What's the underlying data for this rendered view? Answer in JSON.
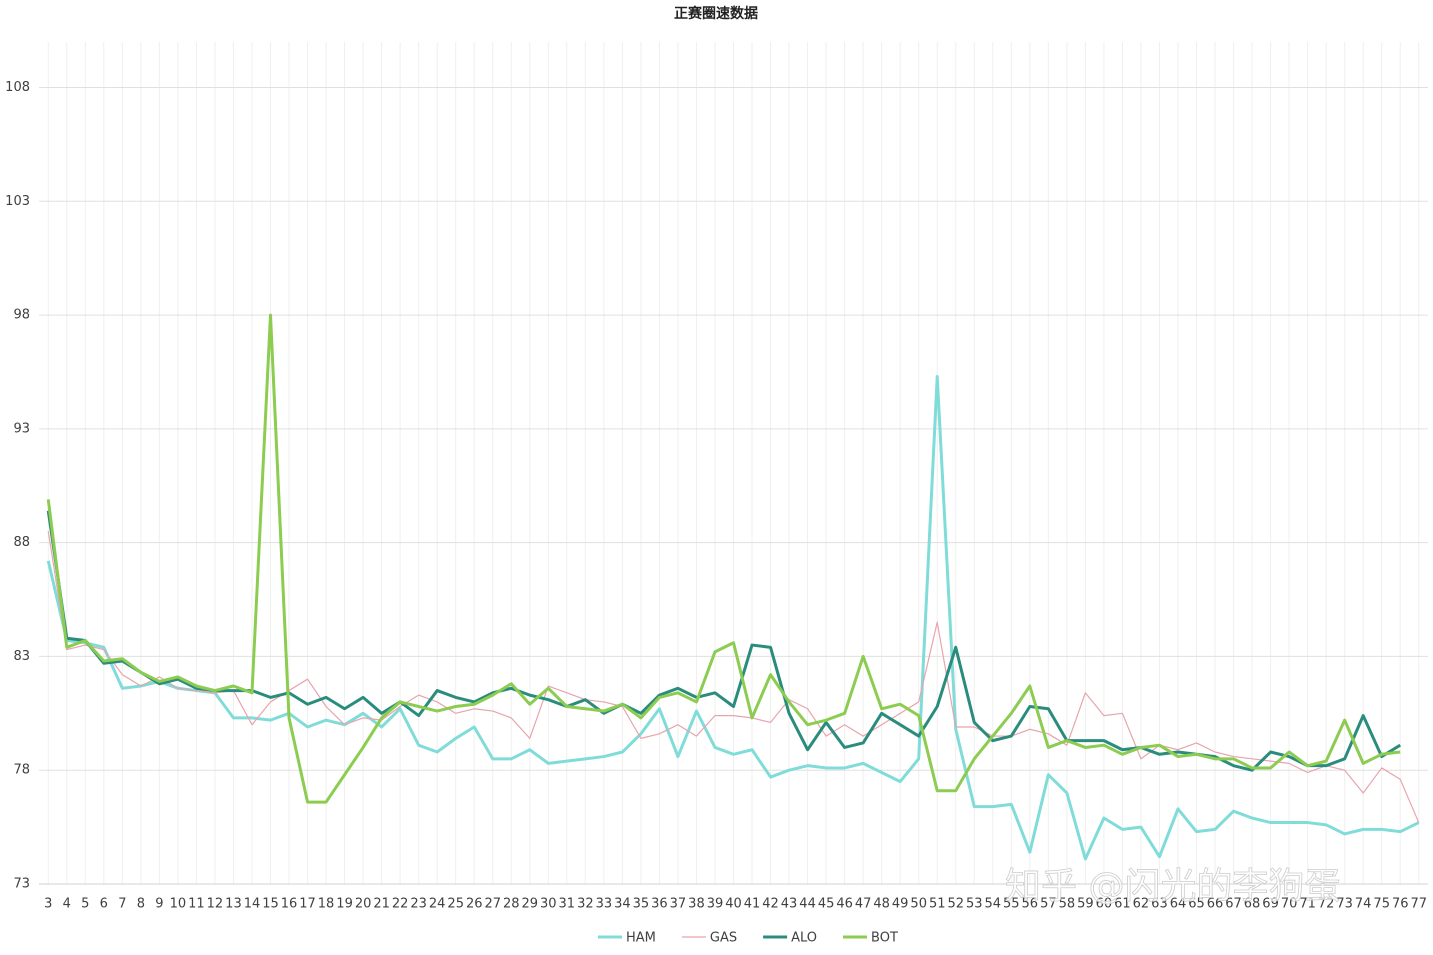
{
  "chart_data": {
    "type": "line",
    "title": "正赛圈速数据",
    "categories": [
      3,
      4,
      5,
      6,
      7,
      8,
      9,
      10,
      11,
      12,
      13,
      14,
      15,
      16,
      17,
      18,
      19,
      20,
      21,
      22,
      23,
      24,
      25,
      26,
      27,
      28,
      29,
      30,
      31,
      32,
      33,
      34,
      35,
      36,
      37,
      38,
      39,
      40,
      41,
      42,
      43,
      44,
      45,
      46,
      47,
      48,
      49,
      50,
      51,
      52,
      53,
      54,
      55,
      56,
      57,
      58,
      59,
      60,
      61,
      62,
      63,
      64,
      65,
      66,
      67,
      68,
      69,
      70,
      71,
      72,
      73,
      74,
      75,
      76,
      77
    ],
    "series": [
      {
        "name": "HAM",
        "color": "#80dcd8",
        "width": 3,
        "values": [
          87.2,
          83.7,
          83.6,
          83.4,
          81.6,
          81.7,
          81.9,
          81.6,
          81.5,
          81.4,
          80.3,
          80.3,
          80.2,
          80.5,
          79.9,
          80.2,
          80.0,
          80.5,
          79.9,
          80.7,
          79.1,
          78.8,
          79.4,
          79.9,
          78.5,
          78.5,
          78.9,
          78.3,
          78.4,
          78.5,
          78.6,
          78.8,
          79.6,
          80.7,
          78.6,
          80.6,
          79.0,
          78.7,
          78.9,
          77.7,
          78.0,
          78.2,
          78.1,
          78.1,
          78.3,
          77.9,
          77.5,
          78.5,
          95.3,
          79.8,
          76.4,
          76.4,
          76.5,
          74.4,
          77.8,
          77.0,
          74.1,
          75.9,
          75.4,
          75.5,
          74.2,
          76.3,
          75.3,
          75.4,
          76.2,
          75.9,
          75.7,
          75.7,
          75.7,
          75.6,
          75.2,
          75.4,
          75.4,
          75.3,
          75.7
        ]
      },
      {
        "name": "GAS",
        "color": "#e8a4ac",
        "width": 1.2,
        "values": [
          88.5,
          83.3,
          83.5,
          83.3,
          82.2,
          81.7,
          82.1,
          81.6,
          81.5,
          81.4,
          81.5,
          80.0,
          81.0,
          81.5,
          82.0,
          80.8,
          80.0,
          80.3,
          80.2,
          80.8,
          81.3,
          81.0,
          80.5,
          80.7,
          80.6,
          80.3,
          79.4,
          81.7,
          81.4,
          81.1,
          81.0,
          80.8,
          79.4,
          79.6,
          80.0,
          79.5,
          80.4,
          80.4,
          80.3,
          80.1,
          81.1,
          80.7,
          79.5,
          80.0,
          79.5,
          80.0,
          80.5,
          81.0,
          84.5,
          79.9,
          79.9,
          79.5,
          79.5,
          79.8,
          79.6,
          79.1,
          81.4,
          80.4,
          80.5,
          78.5,
          79.1,
          78.9,
          79.2,
          78.8,
          78.6,
          78.5,
          78.4,
          78.3,
          77.9,
          78.2,
          78.0,
          77.0,
          78.1,
          77.6,
          75.7
        ]
      },
      {
        "name": "ALO",
        "color": "#2a8c7c",
        "width": 3,
        "values": [
          89.4,
          83.8,
          83.7,
          82.7,
          82.8,
          82.3,
          81.8,
          82.0,
          81.6,
          81.5,
          81.5,
          81.5,
          81.2,
          81.4,
          80.9,
          81.2,
          80.7,
          81.2,
          80.5,
          81.0,
          80.4,
          81.5,
          81.2,
          81.0,
          81.4,
          81.6,
          81.3,
          81.1,
          80.8,
          81.1,
          80.5,
          80.9,
          80.5,
          81.3,
          81.6,
          81.2,
          81.4,
          80.8,
          83.5,
          83.4,
          80.5,
          78.9,
          80.1,
          79.0,
          79.2,
          80.5,
          80.0,
          79.5,
          80.8,
          83.4,
          80.1,
          79.3,
          79.5,
          80.8,
          80.7,
          79.3,
          79.3,
          79.3,
          78.9,
          79.0,
          78.7,
          78.8,
          78.7,
          78.6,
          78.2,
          78.0,
          78.8,
          78.6,
          78.2,
          78.2,
          78.5,
          80.4,
          78.6,
          79.1,
          null
        ]
      },
      {
        "name": "BOT",
        "color": "#8ccc50",
        "width": 3,
        "values": [
          89.9,
          83.4,
          83.7,
          82.8,
          82.9,
          82.3,
          81.9,
          82.1,
          81.7,
          81.5,
          81.7,
          81.4,
          98.0,
          80.3,
          76.6,
          76.6,
          77.8,
          79.0,
          80.3,
          81.0,
          80.8,
          80.6,
          80.8,
          80.9,
          81.3,
          81.8,
          80.9,
          81.6,
          80.8,
          80.7,
          80.6,
          80.9,
          80.3,
          81.2,
          81.4,
          81.0,
          83.2,
          83.6,
          80.3,
          82.2,
          81.0,
          80.0,
          80.2,
          80.5,
          83.0,
          80.7,
          80.9,
          80.4,
          77.1,
          77.1,
          78.5,
          79.5,
          80.5,
          81.7,
          79.0,
          79.3,
          79.0,
          79.1,
          78.7,
          79.0,
          79.1,
          78.6,
          78.7,
          78.5,
          78.5,
          78.1,
          78.1,
          78.8,
          78.2,
          78.4,
          80.2,
          78.3,
          78.7,
          78.8,
          null
        ]
      }
    ],
    "ylim": [
      73,
      110
    ],
    "yticks": [
      73,
      78,
      83,
      88,
      93,
      98,
      103,
      108
    ],
    "grid": true,
    "legend": "bottom",
    "watermark": "知乎 @闪光的李狗蛋"
  }
}
